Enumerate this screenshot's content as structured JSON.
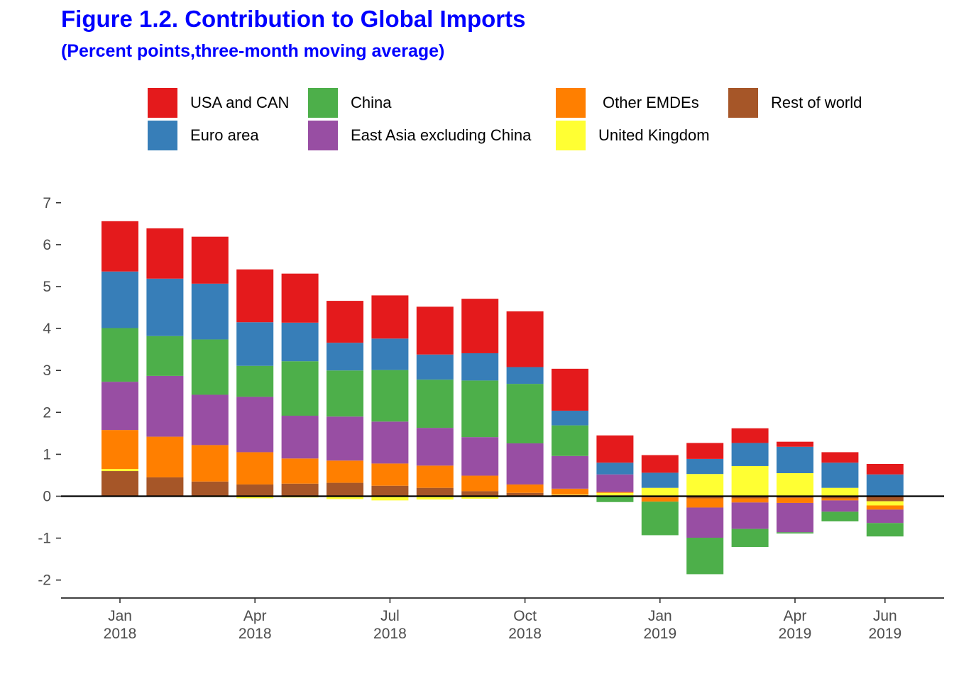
{
  "header": {
    "title": "Figure 1.2. Contribution to Global Imports",
    "subtitle": "(Percent points,three-month moving average)"
  },
  "chart_data": {
    "type": "bar",
    "stacked": true,
    "title": "Figure 1.2. Contribution to Global Imports",
    "subtitle": "(Percent points,three-month moving average)",
    "xlabel": "",
    "ylabel": "",
    "ylim": [
      -2.45,
      7.3
    ],
    "yticks": [
      -2,
      -1,
      0,
      1,
      2,
      3,
      4,
      5,
      6,
      7
    ],
    "grid": false,
    "legend_position": "top",
    "categories": [
      "2018-01",
      "2018-02",
      "2018-03",
      "2018-04",
      "2018-05",
      "2018-06",
      "2018-07",
      "2018-08",
      "2018-09",
      "2018-10",
      "2018-11",
      "2018-12",
      "2019-01",
      "2019-02",
      "2019-03",
      "2019-04",
      "2019-05",
      "2019-06"
    ],
    "x_tick_labels": [
      {
        "category": "2018-01",
        "month": "Jan",
        "year": "2018"
      },
      {
        "category": "2018-04",
        "month": "Apr",
        "year": "2018"
      },
      {
        "category": "2018-07",
        "month": "Jul",
        "year": "2018"
      },
      {
        "category": "2018-10",
        "month": "Oct",
        "year": "2018"
      },
      {
        "category": "2019-01",
        "month": "Jan",
        "year": "2019"
      },
      {
        "category": "2019-04",
        "month": "Apr",
        "year": "2019"
      },
      {
        "category": "2019-06",
        "month": "Jun",
        "year": "2019"
      }
    ],
    "series": [
      {
        "name": "Rest of world",
        "color": "#a65628",
        "values": [
          0.6,
          0.45,
          0.35,
          0.28,
          0.3,
          0.32,
          0.25,
          0.2,
          0.12,
          0.08,
          0.03,
          0.02,
          -0.03,
          -0.05,
          -0.05,
          -0.04,
          -0.05,
          -0.12
        ]
      },
      {
        "name": "United Kingdom",
        "color": "#ffff33",
        "values": [
          0.05,
          0.0,
          -0.02,
          -0.05,
          -0.03,
          -0.07,
          -0.1,
          -0.08,
          -0.06,
          0.0,
          0.01,
          0.06,
          0.2,
          0.53,
          0.72,
          0.55,
          0.2,
          -0.1
        ]
      },
      {
        "name": "Other EMDEs",
        "color": "#ff7f00",
        "values": [
          0.93,
          0.97,
          0.87,
          0.77,
          0.6,
          0.53,
          0.53,
          0.53,
          0.37,
          0.2,
          0.14,
          0.02,
          -0.1,
          -0.22,
          -0.1,
          -0.12,
          -0.05,
          -0.1
        ]
      },
      {
        "name": "East Asia excluding China",
        "color": "#984ea3",
        "values": [
          1.15,
          1.45,
          1.2,
          1.32,
          1.02,
          1.05,
          1.0,
          0.9,
          0.92,
          0.98,
          0.78,
          0.42,
          0.0,
          -0.72,
          -0.63,
          -0.7,
          -0.27,
          -0.32
        ]
      },
      {
        "name": "China",
        "color": "#4daf4a",
        "values": [
          1.28,
          0.95,
          1.32,
          0.74,
          1.3,
          1.1,
          1.23,
          1.15,
          1.35,
          1.42,
          0.73,
          -0.14,
          -0.8,
          -0.87,
          -0.43,
          -0.03,
          -0.23,
          -0.32
        ]
      },
      {
        "name": "Euro area",
        "color": "#377eb8",
        "values": [
          1.35,
          1.37,
          1.33,
          1.04,
          0.92,
          0.66,
          0.75,
          0.6,
          0.65,
          0.4,
          0.35,
          0.28,
          0.36,
          0.36,
          0.55,
          0.63,
          0.6,
          0.52
        ]
      },
      {
        "name": "USA and CAN",
        "color": "#e41a1c",
        "values": [
          1.2,
          1.2,
          1.12,
          1.26,
          1.17,
          1.0,
          1.03,
          1.14,
          1.3,
          1.33,
          1.0,
          0.65,
          0.42,
          0.38,
          0.35,
          0.12,
          0.25,
          0.25
        ]
      }
    ]
  },
  "legend": {
    "items": [
      {
        "name": "USA and CAN",
        "color": "#e41a1c"
      },
      {
        "name": "China",
        "color": "#4daf4a"
      },
      {
        "name": "Other EMDEs",
        "color": "#ff7f00"
      },
      {
        "name": "Rest of world",
        "color": "#a65628"
      },
      {
        "name": "Euro area",
        "color": "#377eb8"
      },
      {
        "name": "East Asia excluding China",
        "color": "#984ea3"
      },
      {
        "name": "United Kingdom",
        "color": "#ffff33"
      }
    ]
  }
}
